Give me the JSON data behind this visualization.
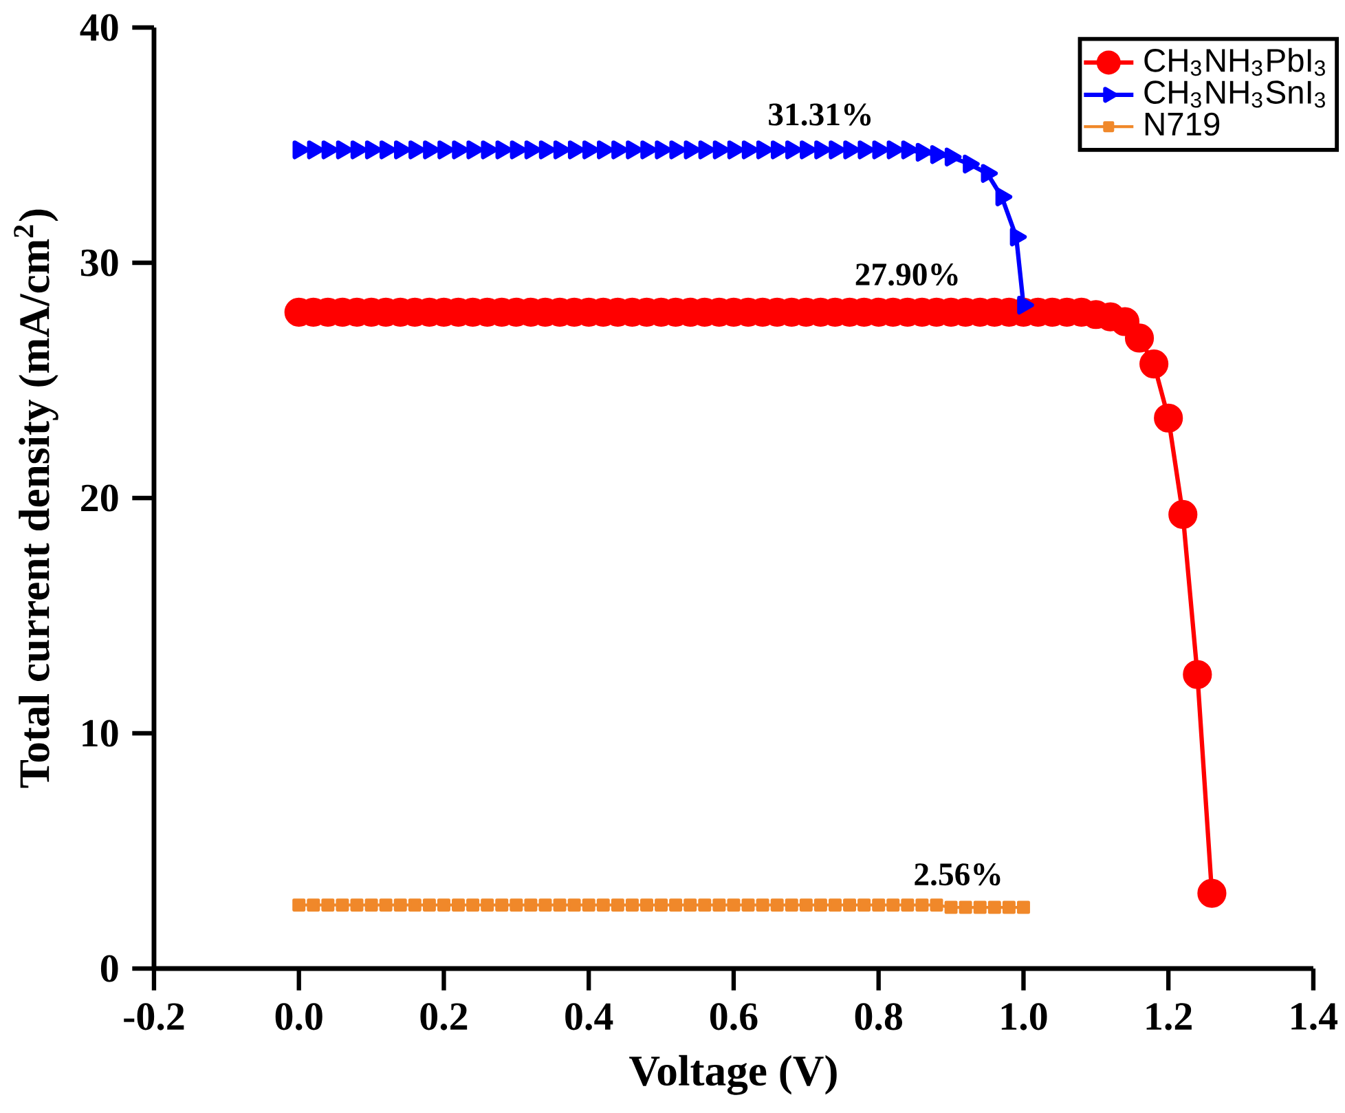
{
  "chart_data": {
    "type": "line",
    "xlabel": "Voltage (V)",
    "ylabel": "Total current density (mA/cm$^{2}$)",
    "xlim": [
      -0.2,
      1.4
    ],
    "ylim": [
      0,
      40
    ],
    "xticks": [
      -0.2,
      {
        "value": 0,
        "label": "0.0"
      },
      0.2,
      0.4,
      0.6,
      0.8,
      {
        "value": 1,
        "label": "1.0"
      },
      1.2,
      1.4
    ],
    "yticks": [
      0,
      10,
      20,
      30,
      40
    ],
    "legend": "top right",
    "grid": false,
    "line_style": "solid",
    "series": [
      {
        "name": "CH$_{3}$NH$_{3}$PbI$_{3}$",
        "color": "#ff0000",
        "marker": "circle",
        "x": [
          0,
          0.02,
          0.04,
          0.06,
          0.08,
          0.1,
          0.12,
          0.14,
          0.16,
          0.18,
          0.2,
          0.22,
          0.24,
          0.26,
          0.28,
          0.3,
          0.32,
          0.34,
          0.36,
          0.38,
          0.4,
          0.42,
          0.44,
          0.46,
          0.48,
          0.5,
          0.52,
          0.54,
          0.56,
          0.58,
          0.6,
          0.62,
          0.64,
          0.66,
          0.68,
          0.7,
          0.72,
          0.74,
          0.76,
          0.78,
          0.8,
          0.82,
          0.84,
          0.86,
          0.88,
          0.9,
          0.92,
          0.94,
          0.96,
          0.98,
          1.0,
          1.02,
          1.04,
          1.06,
          1.08,
          1.1,
          1.12,
          1.14,
          1.16,
          1.18,
          1.2,
          1.22,
          1.24,
          1.26
        ],
        "values": [
          27.9,
          27.9,
          27.9,
          27.9,
          27.9,
          27.9,
          27.9,
          27.9,
          27.9,
          27.9,
          27.9,
          27.9,
          27.9,
          27.9,
          27.9,
          27.9,
          27.9,
          27.9,
          27.9,
          27.9,
          27.9,
          27.9,
          27.9,
          27.9,
          27.9,
          27.9,
          27.9,
          27.9,
          27.9,
          27.9,
          27.9,
          27.9,
          27.9,
          27.9,
          27.9,
          27.9,
          27.9,
          27.9,
          27.9,
          27.9,
          27.9,
          27.9,
          27.9,
          27.9,
          27.9,
          27.9,
          27.9,
          27.9,
          27.9,
          27.9,
          27.9,
          27.9,
          27.9,
          27.9,
          27.9,
          27.8,
          27.7,
          27.5,
          26.8,
          25.7,
          23.4,
          19.3,
          12.5,
          3.2
        ]
      },
      {
        "name": "CH$_{3}$NH$_{3}$SnI$_{3}$",
        "color": "#0000ff",
        "marker": "triangle",
        "x": [
          0,
          0.02,
          0.04,
          0.06,
          0.08,
          0.1,
          0.12,
          0.14,
          0.16,
          0.18,
          0.2,
          0.22,
          0.24,
          0.26,
          0.28,
          0.3,
          0.32,
          0.34,
          0.36,
          0.38,
          0.4,
          0.42,
          0.44,
          0.46,
          0.48,
          0.5,
          0.52,
          0.54,
          0.56,
          0.58,
          0.6,
          0.62,
          0.64,
          0.66,
          0.68,
          0.7,
          0.72,
          0.74,
          0.76,
          0.78,
          0.8,
          0.82,
          0.84,
          0.86,
          0.88,
          0.9,
          0.925,
          0.95,
          0.97,
          0.99,
          1.0
        ],
        "values": [
          34.8,
          34.8,
          34.8,
          34.8,
          34.8,
          34.8,
          34.8,
          34.8,
          34.8,
          34.8,
          34.8,
          34.8,
          34.8,
          34.8,
          34.8,
          34.8,
          34.8,
          34.8,
          34.8,
          34.8,
          34.8,
          34.8,
          34.8,
          34.8,
          34.8,
          34.8,
          34.8,
          34.8,
          34.8,
          34.8,
          34.8,
          34.8,
          34.8,
          34.8,
          34.8,
          34.8,
          34.8,
          34.8,
          34.8,
          34.8,
          34.8,
          34.8,
          34.8,
          34.7,
          34.6,
          34.5,
          34.2,
          33.8,
          32.8,
          31.1,
          28.2
        ]
      },
      {
        "name": "N719",
        "color": "#f0882a",
        "marker": "square",
        "x": [
          0,
          0.02,
          0.04,
          0.06,
          0.08,
          0.1,
          0.12,
          0.14,
          0.16,
          0.18,
          0.2,
          0.22,
          0.24,
          0.26,
          0.28,
          0.3,
          0.32,
          0.34,
          0.36,
          0.38,
          0.4,
          0.42,
          0.44,
          0.46,
          0.48,
          0.5,
          0.52,
          0.54,
          0.56,
          0.58,
          0.6,
          0.62,
          0.64,
          0.66,
          0.68,
          0.7,
          0.72,
          0.74,
          0.76,
          0.78,
          0.8,
          0.82,
          0.84,
          0.86,
          0.88,
          0.9,
          0.92,
          0.94,
          0.96,
          0.98,
          1.0
        ],
        "values": [
          2.7,
          2.7,
          2.7,
          2.7,
          2.7,
          2.7,
          2.7,
          2.7,
          2.7,
          2.7,
          2.7,
          2.7,
          2.7,
          2.7,
          2.7,
          2.7,
          2.7,
          2.7,
          2.7,
          2.7,
          2.7,
          2.7,
          2.7,
          2.7,
          2.7,
          2.7,
          2.7,
          2.7,
          2.7,
          2.7,
          2.7,
          2.7,
          2.7,
          2.7,
          2.7,
          2.7,
          2.7,
          2.7,
          2.7,
          2.7,
          2.7,
          2.7,
          2.7,
          2.7,
          2.7,
          2.6,
          2.6,
          2.6,
          2.6,
          2.6,
          2.6
        ]
      }
    ],
    "annotations": [
      "31.31%",
      "27.90%",
      "2.56%"
    ]
  }
}
